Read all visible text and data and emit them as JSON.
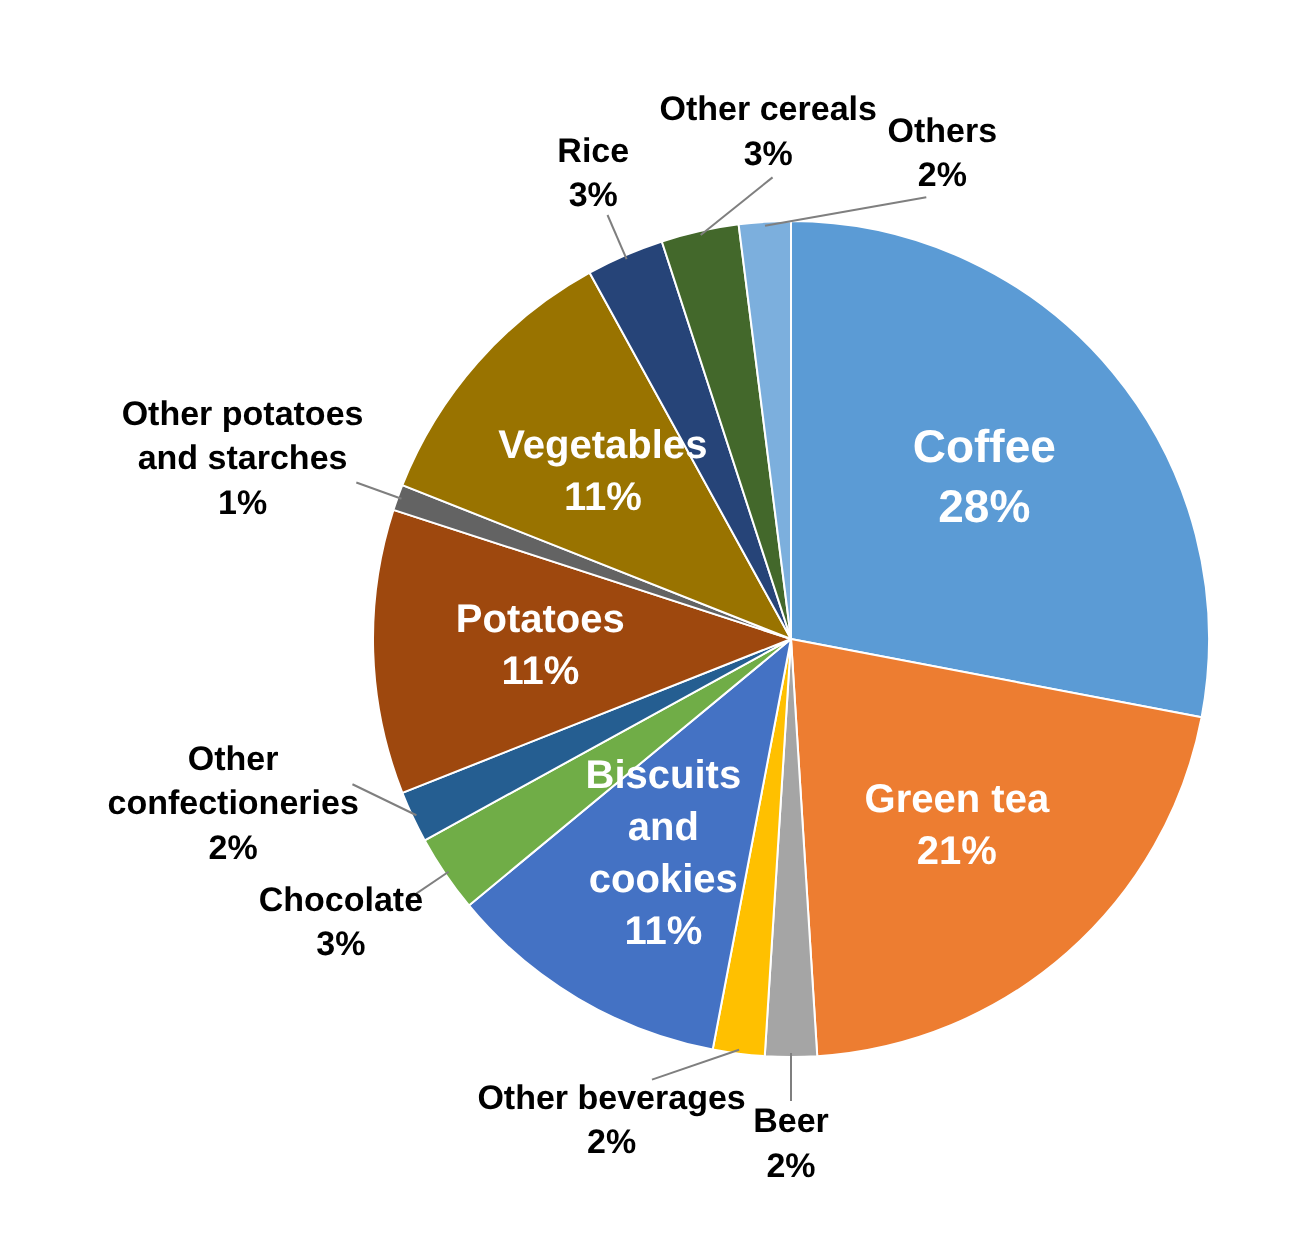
{
  "chart_data": {
    "type": "pie",
    "categories": [
      "Coffee",
      "Green tea",
      "Beer",
      "Other beverages",
      "Biscuits and cookies",
      "Chocolate",
      "Other confectioneries",
      "Potatoes",
      "Other potatoes and starches",
      "Vegetables",
      "Rice",
      "Other cereals",
      "Others"
    ],
    "values": [
      28,
      21,
      2,
      2,
      11,
      3,
      2,
      11,
      1,
      11,
      3,
      3,
      2
    ],
    "value_labels": [
      "28%",
      "21%",
      "2%",
      "2%",
      "11%",
      "3%",
      "2%",
      "11%",
      "1%",
      "11%",
      "3%",
      "3%",
      "2%"
    ],
    "colors": [
      "#5b9bd5",
      "#ed7d31",
      "#a5a5a5",
      "#ffc000",
      "#4472c4",
      "#70ad47",
      "#255e91",
      "#9e480e",
      "#636363",
      "#997300",
      "#264478",
      "#43682b",
      "#7cafdd"
    ],
    "legend": false
  }
}
